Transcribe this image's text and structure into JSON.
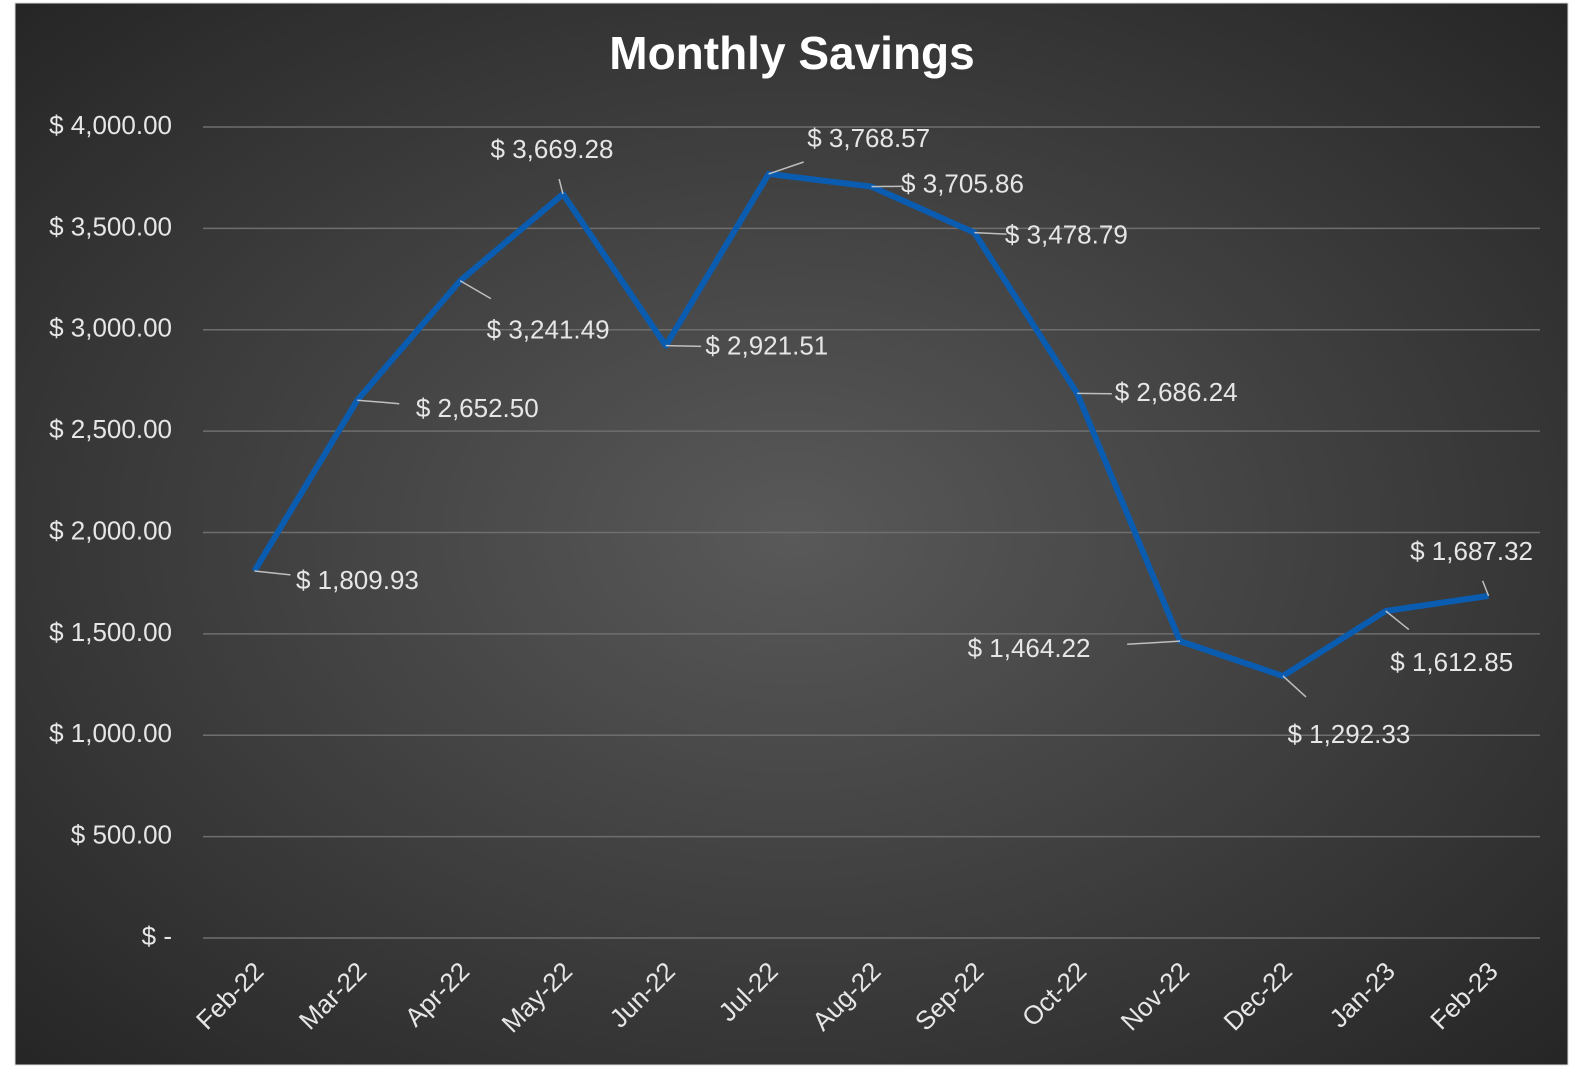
{
  "chart_data": {
    "type": "line",
    "title": "Monthly Savings",
    "categories": [
      "Feb-22",
      "Mar-22",
      "Apr-22",
      "May-22",
      "Jun-22",
      "Jul-22",
      "Aug-22",
      "Sep-22",
      "Oct-22",
      "Nov-22",
      "Dec-22",
      "Jan-23",
      "Feb-23"
    ],
    "series": [
      {
        "name": "Monthly Savings",
        "color": "#0a5cb0",
        "values": [
          1809.93,
          2652.5,
          3241.49,
          3669.28,
          2921.51,
          3768.57,
          3705.86,
          3478.79,
          2686.24,
          1464.22,
          1292.33,
          1612.85,
          1687.32
        ],
        "value_labels": [
          "$ 1,809.93",
          "$ 2,652.50",
          "$ 3,241.49",
          "$ 3,669.28",
          "$ 2,921.51",
          "$ 3,768.57",
          "$ 3,705.86",
          "$ 3,478.79",
          "$ 2,686.24",
          "$ 1,464.22",
          "$ 1,292.33",
          "$ 1,612.85",
          "$ 1,687.32"
        ]
      }
    ],
    "ylim": [
      0,
      4000
    ],
    "yticks": [
      {
        "value": 0,
        "label": "$ -"
      },
      {
        "value": 500,
        "label": "$ 500.00"
      },
      {
        "value": 1000,
        "label": "$ 1,000.00"
      },
      {
        "value": 1500,
        "label": "$ 1,500.00"
      },
      {
        "value": 2000,
        "label": "$ 2,000.00"
      },
      {
        "value": 2500,
        "label": "$ 2,500.00"
      },
      {
        "value": 3000,
        "label": "$ 3,000.00"
      },
      {
        "value": 3500,
        "label": "$ 3,500.00"
      },
      {
        "value": 4000,
        "label": "$ 4,000.00"
      }
    ],
    "grid": true
  }
}
